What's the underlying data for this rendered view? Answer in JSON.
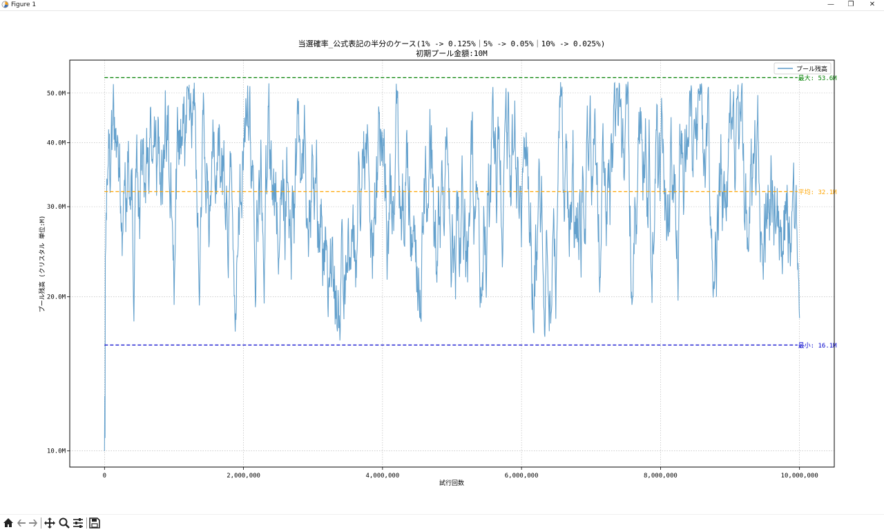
{
  "window": {
    "title": "Figure 1",
    "controls": [
      "—",
      "❐",
      "✕"
    ]
  },
  "toolbar": {
    "buttons": [
      "home-icon",
      "back-icon",
      "forward-icon",
      "pan-icon",
      "zoom-icon",
      "configure-icon",
      "save-icon"
    ]
  },
  "chart_data": {
    "type": "line",
    "title": "当選確率_公式表記の半分のケース(1% -> 0.125%｜5% -> 0.05%｜10% -> 0.025%)",
    "subtitle": "初期プール金額:10M",
    "xlabel": "試行回数",
    "ylabel": "プール残高 (クリスタル 単位:M)",
    "yscale": "log",
    "xlim": [
      -500000,
      10500000
    ],
    "ylim": [
      9.3,
      58
    ],
    "xticks": [
      0,
      2000000,
      4000000,
      6000000,
      8000000,
      10000000
    ],
    "xtick_labels": [
      "0",
      "2,000,000",
      "4,000,000",
      "6,000,000",
      "8,000,000",
      "10,000,000"
    ],
    "yticks": [
      10,
      20,
      30,
      40,
      50
    ],
    "ytick_labels": [
      "10.0M",
      "20.0M",
      "30.0M",
      "40.0M",
      "50.0M"
    ],
    "grid": true,
    "legend_position": "top-right",
    "series": [
      {
        "name": "プール残高",
        "color": "#5b9bc9",
        "start": {
          "x": 0,
          "y": 10.0
        },
        "band_mean": 32.1,
        "band_extremes": {
          "max": 53.6,
          "min": 16.1
        }
      }
    ],
    "hlines": [
      {
        "label": "最大: 53.6M",
        "y": 53.6,
        "color": "#008000"
      },
      {
        "label": "平均: 32.1M",
        "y": 32.1,
        "color": "#ffa500"
      },
      {
        "label": "最小: 16.1M",
        "y": 16.1,
        "color": "#0000cc"
      }
    ]
  }
}
